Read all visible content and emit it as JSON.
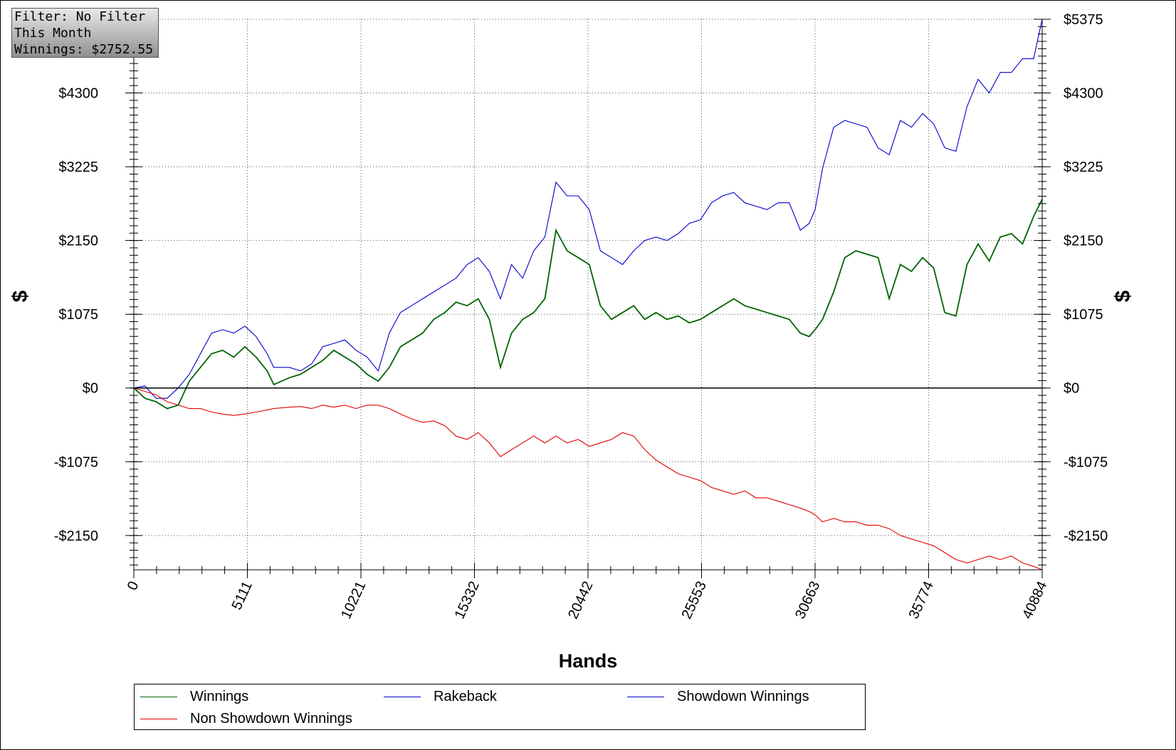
{
  "info_box": {
    "filter": "Filter: No Filter",
    "period": "This Month",
    "winnings": "Winnings: $2752.55"
  },
  "legend": {
    "items": [
      {
        "label": "Winnings",
        "color": "#006400"
      },
      {
        "label": "Rakeback",
        "color": "#0000cd"
      },
      {
        "label": "Showdown Winnings",
        "color": "#0000cd"
      },
      {
        "label": "Non Showdown Winnings",
        "color": "#e00000"
      }
    ]
  },
  "chart_data": {
    "type": "line",
    "xlabel": "Hands",
    "ylabel": "$",
    "x_ticks": [
      0,
      5111,
      10221,
      15332,
      20442,
      25553,
      30663,
      35774,
      40884
    ],
    "y_ticks": [
      -2150,
      -1075,
      0,
      1075,
      2150,
      3225,
      4300,
      5375
    ],
    "y_tick_labels": [
      "-$2150",
      "-$1075",
      "$0",
      "$1075",
      "$2150",
      "$3225",
      "$4300",
      "$5375"
    ],
    "y_left_tick_labels": [
      "-$2150",
      "-$1075",
      "$0",
      "$1075",
      "$2150",
      "$3225",
      "$4300",
      ""
    ],
    "xlim": [
      0,
      40884
    ],
    "ylim": [
      -2650,
      5375
    ],
    "grid": true,
    "legend_position": "bottom",
    "series": [
      {
        "name": "Showdown Winnings",
        "color": "#0000cd",
        "x": [
          0,
          500,
          1000,
          1500,
          2000,
          2500,
          3000,
          3500,
          4000,
          4500,
          5000,
          5500,
          6000,
          6300,
          7000,
          7500,
          8000,
          8500,
          9000,
          9500,
          10000,
          10500,
          11000,
          11500,
          12000,
          12500,
          13000,
          13500,
          14000,
          14500,
          15000,
          15500,
          16000,
          16500,
          17000,
          17500,
          18000,
          18500,
          19000,
          19500,
          20000,
          20500,
          21000,
          21500,
          22000,
          22500,
          23000,
          23500,
          24000,
          24500,
          25000,
          25500,
          26000,
          26500,
          27000,
          27500,
          28000,
          28500,
          29000,
          29500,
          30000,
          30400,
          30663,
          31000,
          31500,
          32000,
          32500,
          33000,
          33500,
          34000,
          34500,
          35000,
          35500,
          36000,
          36500,
          37000,
          37500,
          38000,
          38500,
          39000,
          39500,
          40000,
          40500,
          40884
        ],
        "y": [
          0,
          30,
          -150,
          -150,
          0,
          200,
          500,
          800,
          850,
          800,
          900,
          750,
          500,
          300,
          300,
          250,
          350,
          600,
          650,
          700,
          550,
          450,
          250,
          800,
          1100,
          1200,
          1300,
          1400,
          1500,
          1600,
          1800,
          1900,
          1700,
          1300,
          1800,
          1600,
          2000,
          2200,
          3000,
          2800,
          2800,
          2600,
          2000,
          1900,
          1800,
          2000,
          2150,
          2200,
          2150,
          2250,
          2400,
          2450,
          2700,
          2800,
          2850,
          2700,
          2650,
          2600,
          2700,
          2700,
          2300,
          2400,
          2600,
          3200,
          3800,
          3900,
          3850,
          3800,
          3500,
          3400,
          3900,
          3800,
          4000,
          3850,
          3500,
          3450,
          4100,
          4500,
          4300,
          4600,
          4600,
          4800,
          4800,
          5375
        ]
      },
      {
        "name": "Winnings",
        "color": "#006400",
        "x": [
          0,
          500,
          1000,
          1500,
          2000,
          2500,
          3000,
          3500,
          4000,
          4500,
          5000,
          5500,
          6000,
          6300,
          7000,
          7500,
          8000,
          8500,
          9000,
          9500,
          10000,
          10500,
          11000,
          11500,
          12000,
          12500,
          13000,
          13500,
          14000,
          14500,
          15000,
          15500,
          16000,
          16500,
          17000,
          17500,
          18000,
          18500,
          19000,
          19500,
          20000,
          20500,
          21000,
          21500,
          22000,
          22500,
          23000,
          23500,
          24000,
          24500,
          25000,
          25500,
          26000,
          26500,
          27000,
          27500,
          28000,
          28500,
          29000,
          29500,
          30000,
          30400,
          30663,
          31000,
          31500,
          32000,
          32500,
          33000,
          33500,
          34000,
          34500,
          35000,
          35500,
          36000,
          36500,
          37000,
          37500,
          38000,
          38500,
          39000,
          39500,
          40000,
          40500,
          40884
        ],
        "y": [
          0,
          -150,
          -200,
          -300,
          -250,
          100,
          300,
          500,
          550,
          450,
          600,
          450,
          250,
          50,
          150,
          200,
          300,
          400,
          550,
          450,
          350,
          200,
          100,
          300,
          600,
          700,
          800,
          1000,
          1100,
          1250,
          1200,
          1300,
          1000,
          300,
          800,
          1000,
          1100,
          1300,
          2300,
          2000,
          1900,
          1800,
          1200,
          1000,
          1100,
          1200,
          1000,
          1100,
          1000,
          1050,
          950,
          1000,
          1100,
          1200,
          1300,
          1200,
          1150,
          1100,
          1050,
          1000,
          800,
          750,
          850,
          1000,
          1400,
          1900,
          2000,
          1950,
          1900,
          1300,
          1800,
          1700,
          1900,
          1750,
          1100,
          1050,
          1800,
          2100,
          1850,
          2200,
          2250,
          2100,
          2500,
          2752
        ]
      },
      {
        "name": "Non Showdown Winnings",
        "color": "#e00000",
        "x": [
          0,
          500,
          1000,
          1500,
          2000,
          2500,
          3000,
          3500,
          4000,
          4500,
          5000,
          5500,
          6000,
          6300,
          7000,
          7500,
          8000,
          8500,
          9000,
          9500,
          10000,
          10500,
          11000,
          11500,
          12000,
          12500,
          13000,
          13500,
          14000,
          14500,
          15000,
          15500,
          16000,
          16500,
          17000,
          17500,
          18000,
          18500,
          19000,
          19500,
          20000,
          20500,
          21000,
          21500,
          22000,
          22500,
          23000,
          23500,
          24000,
          24500,
          25000,
          25500,
          26000,
          26500,
          27000,
          27500,
          28000,
          28500,
          29000,
          29500,
          30000,
          30400,
          30663,
          31000,
          31500,
          32000,
          32500,
          33000,
          33500,
          34000,
          34500,
          35000,
          35500,
          36000,
          36500,
          37000,
          37500,
          38000,
          38500,
          39000,
          39500,
          40000,
          40500,
          40884
        ],
        "y": [
          0,
          -50,
          -100,
          -200,
          -250,
          -300,
          -300,
          -350,
          -380,
          -400,
          -380,
          -350,
          -320,
          -300,
          -280,
          -270,
          -300,
          -250,
          -280,
          -250,
          -300,
          -250,
          -250,
          -300,
          -380,
          -450,
          -500,
          -480,
          -550,
          -700,
          -750,
          -650,
          -800,
          -1000,
          -900,
          -800,
          -700,
          -800,
          -700,
          -800,
          -750,
          -850,
          -800,
          -750,
          -650,
          -700,
          -900,
          -1050,
          -1150,
          -1250,
          -1300,
          -1350,
          -1450,
          -1500,
          -1550,
          -1500,
          -1600,
          -1600,
          -1650,
          -1700,
          -1750,
          -1800,
          -1850,
          -1950,
          -1900,
          -1950,
          -1950,
          -2000,
          -2000,
          -2050,
          -2150,
          -2200,
          -2250,
          -2300,
          -2400,
          -2500,
          -2550,
          -2500,
          -2450,
          -2500,
          -2450,
          -2550,
          -2600,
          -2650
        ]
      }
    ]
  }
}
